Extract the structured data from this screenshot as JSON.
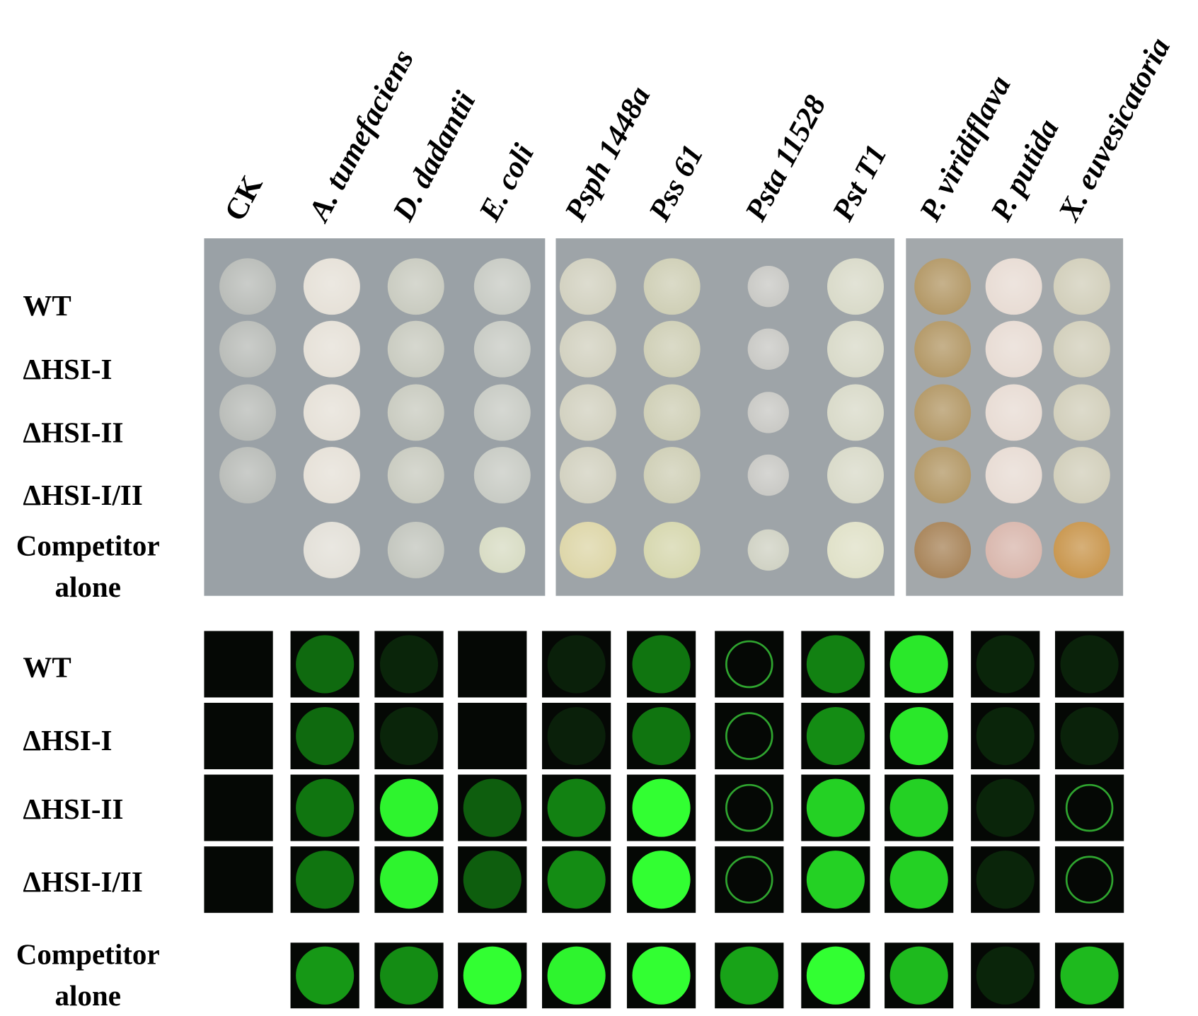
{
  "columns": [
    "CK",
    "A. tumefaciens",
    "D. dadantii",
    "E. coli",
    "Psph 1448a",
    "Pss 61",
    "Psta 11528",
    "Pst T1",
    "P. viridiflava",
    "P. putida",
    "X. euvesicatoria"
  ],
  "plate_rows": [
    {
      "lines": [
        "WT"
      ]
    },
    {
      "lines": [
        "ΔHSI-I"
      ]
    },
    {
      "lines": [
        "ΔHSI-II"
      ]
    },
    {
      "lines": [
        "ΔHSI-I/II"
      ]
    },
    {
      "lines": [
        "Competitor",
        "alone"
      ]
    }
  ],
  "fluorescence_rows": [
    {
      "lines": [
        "WT"
      ]
    },
    {
      "lines": [
        "ΔHSI-I"
      ]
    },
    {
      "lines": [
        "ΔHSI-II"
      ]
    },
    {
      "lines": [
        "ΔHSI-I/II"
      ]
    },
    {
      "lines": [
        "Competitor",
        "alone"
      ]
    }
  ]
}
